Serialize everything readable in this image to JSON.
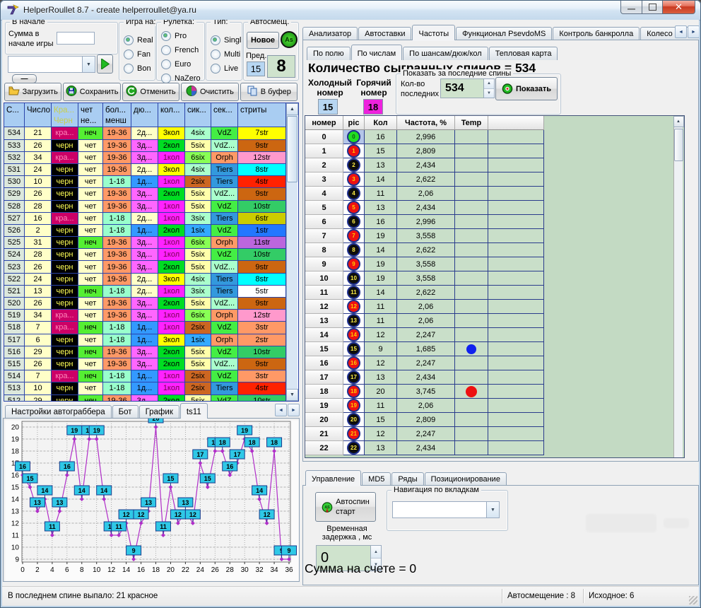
{
  "window": {
    "title": "HelperRoullet 8.7 - create helperroullet@ya.ru"
  },
  "controls": {
    "begin": {
      "title": "В начале",
      "label_line1": "Сумма в",
      "label_line2": "начале игры",
      "sum_value": ""
    },
    "combo_value": "",
    "collapse_label": "—",
    "game": {
      "title": "Игра на:",
      "options": [
        {
          "id": "real",
          "label": "Real",
          "checked": true
        },
        {
          "id": "fan",
          "label": "Fan",
          "checked": false
        },
        {
          "id": "bon",
          "label": "Bon",
          "checked": false
        }
      ]
    },
    "roulette": {
      "title": "Рулетка:",
      "options": [
        {
          "id": "pro",
          "label": "Pro",
          "checked": true
        },
        {
          "id": "french",
          "label": "French",
          "checked": false
        },
        {
          "id": "euro",
          "label": "Euro",
          "checked": false
        },
        {
          "id": "nazero",
          "label": "NaZero",
          "checked": false
        }
      ]
    },
    "type": {
      "title": "Тип:",
      "options": [
        {
          "id": "singl",
          "label": "Singl",
          "checked": true
        },
        {
          "id": "multi",
          "label": "Multi",
          "checked": false
        },
        {
          "id": "live",
          "label": "Live",
          "checked": false
        }
      ]
    },
    "autoshift": {
      "title": "Автосмещ.",
      "new_label": "Новое",
      "as_label": "As",
      "prev_label": "Пред.",
      "prev_value": "15",
      "current_value": "8"
    }
  },
  "toolbar": [
    {
      "id": "load",
      "label": "Загрузить"
    },
    {
      "id": "save",
      "label": "Сохранить"
    },
    {
      "id": "undo",
      "label": "Отменить"
    },
    {
      "id": "clear",
      "label": "Очистить"
    },
    {
      "id": "buffer",
      "label": "В буфер"
    }
  ],
  "spin_table": {
    "headers_row1": [
      "С...",
      "Число",
      "Кра...",
      "чет",
      "бол...",
      "дю...",
      "кол...",
      "сик...",
      "сек...",
      "стриты"
    ],
    "headers_row2": [
      "",
      "",
      "Черн",
      "не...",
      "менш",
      "",
      "",
      "",
      "",
      ""
    ],
    "color_map": {
      "кра...": [
        "#cc0066",
        "#ff88bb"
      ],
      "черн": [
        "#000000",
        "#ffff55"
      ],
      "чет": [
        "#ffffc8",
        "#000000"
      ],
      "неч": [
        "#55ee33",
        "#000000"
      ],
      "19-36": [
        "#ff9966",
        "#000000"
      ],
      "1-18": [
        "#99ffcc",
        "#000000"
      ],
      "1д...": [
        "#3399ff",
        "#000000"
      ],
      "2д...": [
        "#ffffc8",
        "#000000"
      ],
      "3д...": [
        "#ff66ff",
        "#000000"
      ],
      "1кол": [
        "#ff22ff",
        "#77004f"
      ],
      "2кол": [
        "#00dd22",
        "#000000"
      ],
      "3кол": [
        "#ffff00",
        "#000000"
      ],
      "1six": [
        "#33aaff",
        "#000000"
      ],
      "2six": [
        "#cc6622",
        "#000000"
      ],
      "3six": [
        "#aaffcc",
        "#000000"
      ],
      "4six": [
        "#aaffcc",
        "#000000"
      ],
      "5six": [
        "#ffffaa",
        "#000000"
      ],
      "6six": [
        "#88ff55",
        "#000000"
      ],
      "VdZ": [
        "#44ee44",
        "#000000"
      ],
      "VdZ...": [
        "#aaffcc",
        "#000000"
      ],
      "Orph": [
        "#ff9966",
        "#000000"
      ],
      "Tiers": [
        "#3399dd",
        "#000000"
      ],
      "1str": [
        "#2277ff",
        "#000000"
      ],
      "2str": [
        "#ff9966",
        "#000000"
      ],
      "3str": [
        "#ff9966",
        "#000000"
      ],
      "4str": [
        "#ff2200",
        "#000000"
      ],
      "5str": [
        "#ffffff",
        "#000000"
      ],
      "6str": [
        "#cccc00",
        "#000000"
      ],
      "7str": [
        "#ffff00",
        "#000000"
      ],
      "8str": [
        "#00ffff",
        "#000000"
      ],
      "9str": [
        "#cc6611",
        "#000000"
      ],
      "10str": [
        "#33cc66",
        "#000000"
      ],
      "11str": [
        "#bb66dd",
        "#000000"
      ],
      "12str": [
        "#ff99cc",
        "#000000"
      ]
    },
    "rows": [
      [
        "534",
        "21",
        "кра...",
        "неч",
        "19-36",
        "2д...",
        "3кол",
        "4six",
        "VdZ",
        "7str"
      ],
      [
        "533",
        "26",
        "черн",
        "чет",
        "19-36",
        "3д...",
        "2кол",
        "5six",
        "VdZ...",
        "9str"
      ],
      [
        "532",
        "34",
        "кра...",
        "чет",
        "19-36",
        "3д...",
        "1кол",
        "6six",
        "Orph",
        "12str"
      ],
      [
        "531",
        "24",
        "черн",
        "чет",
        "19-36",
        "2д...",
        "3кол",
        "4six",
        "Tiers",
        "8str"
      ],
      [
        "530",
        "10",
        "черн",
        "чет",
        "1-18",
        "1д...",
        "1кол",
        "2six",
        "Tiers",
        "4str"
      ],
      [
        "529",
        "26",
        "черн",
        "чет",
        "19-36",
        "3д...",
        "2кол",
        "5six",
        "VdZ...",
        "9str"
      ],
      [
        "528",
        "28",
        "черн",
        "чет",
        "19-36",
        "3д...",
        "1кол",
        "5six",
        "VdZ",
        "10str"
      ],
      [
        "527",
        "16",
        "кра...",
        "чет",
        "1-18",
        "2д...",
        "1кол",
        "3six",
        "Tiers",
        "6str"
      ],
      [
        "526",
        "2",
        "черн",
        "чет",
        "1-18",
        "1д...",
        "2кол",
        "1six",
        "VdZ",
        "1str"
      ],
      [
        "525",
        "31",
        "черн",
        "неч",
        "19-36",
        "3д...",
        "1кол",
        "6six",
        "Orph",
        "11str"
      ],
      [
        "524",
        "28",
        "черн",
        "чет",
        "19-36",
        "3д...",
        "1кол",
        "5six",
        "VdZ",
        "10str"
      ],
      [
        "523",
        "26",
        "черн",
        "чет",
        "19-36",
        "3д...",
        "2кол",
        "5six",
        "VdZ...",
        "9str"
      ],
      [
        "522",
        "24",
        "черн",
        "чет",
        "19-36",
        "2д...",
        "3кол",
        "4six",
        "Tiers",
        "8str"
      ],
      [
        "521",
        "13",
        "черн",
        "неч",
        "1-18",
        "2д...",
        "1кол",
        "3six",
        "Tiers",
        "5str"
      ],
      [
        "520",
        "26",
        "черн",
        "чет",
        "19-36",
        "3д...",
        "2кол",
        "5six",
        "VdZ...",
        "9str"
      ],
      [
        "519",
        "34",
        "кра...",
        "чет",
        "19-36",
        "3д...",
        "1кол",
        "6six",
        "Orph",
        "12str"
      ],
      [
        "518",
        "7",
        "кра...",
        "неч",
        "1-18",
        "1д...",
        "1кол",
        "2six",
        "VdZ",
        "3str"
      ],
      [
        "517",
        "6",
        "черн",
        "чет",
        "1-18",
        "1д...",
        "3кол",
        "1six",
        "Orph",
        "2str"
      ],
      [
        "516",
        "29",
        "черн",
        "неч",
        "19-36",
        "3д...",
        "2кол",
        "5six",
        "VdZ",
        "10str"
      ],
      [
        "515",
        "26",
        "черн",
        "чет",
        "19-36",
        "3д...",
        "2кол",
        "5six",
        "VdZ...",
        "9str"
      ],
      [
        "514",
        "7",
        "кра...",
        "неч",
        "1-18",
        "1д...",
        "1кол",
        "2six",
        "VdZ",
        "3str"
      ],
      [
        "513",
        "10",
        "черн",
        "чет",
        "1-18",
        "1д...",
        "1кол",
        "2six",
        "Tiers",
        "4str"
      ],
      [
        "512",
        "29",
        "черн",
        "неч",
        "19-36",
        "3д...",
        "2кол",
        "5six",
        "VdZ",
        "10str"
      ]
    ]
  },
  "chart_tabs": [
    {
      "id": "autograbber-settings",
      "label": "Настройки автограббера"
    },
    {
      "id": "bot",
      "label": "Бот"
    },
    {
      "id": "chart",
      "label": "График"
    },
    {
      "id": "ts11",
      "label": "ts11",
      "active": true
    }
  ],
  "chart_data": {
    "type": "line",
    "title": "",
    "xlabel": "",
    "ylabel": "",
    "x": [
      0,
      1,
      2,
      3,
      4,
      5,
      6,
      7,
      8,
      9,
      10,
      11,
      12,
      13,
      14,
      15,
      16,
      17,
      18,
      19,
      20,
      21,
      22,
      23,
      24,
      25,
      26,
      27,
      28,
      29,
      30,
      31,
      32,
      33,
      34,
      35,
      36
    ],
    "values": [
      16,
      15,
      13,
      14,
      11,
      13,
      16,
      19,
      14,
      19,
      19,
      14,
      11,
      11,
      12,
      9,
      12,
      13,
      20,
      11,
      15,
      12,
      13,
      12,
      17,
      15,
      18,
      18,
      16,
      17,
      19,
      18,
      14,
      12,
      18,
      9,
      9
    ],
    "ylim": [
      9,
      20
    ],
    "x_tick_step": 2,
    "grid": true,
    "legend": "none",
    "line_color": "#b02ec8",
    "label_box_color": "#2fc8e6",
    "label_box_border": "#1a3a8c"
  },
  "main_tabs": [
    {
      "id": "analyzer",
      "label": "Анализатор"
    },
    {
      "id": "autobets",
      "label": "Автоставки"
    },
    {
      "id": "frequencies",
      "label": "Частоты",
      "active": true
    },
    {
      "id": "psevdoms",
      "label": "Функционал PsevdoMS"
    },
    {
      "id": "bankroll",
      "label": "Контроль банкролла"
    },
    {
      "id": "wheel",
      "label": "Колесо рулет"
    }
  ],
  "freq_panel": {
    "sub_tabs": [
      {
        "id": "by-field",
        "label": "По полю"
      },
      {
        "id": "by-numbers",
        "label": "По числам",
        "active": true
      },
      {
        "id": "by-chances",
        "label": "По шансам/дюж/кол"
      },
      {
        "id": "heat-map",
        "label": "Тепловая карта"
      }
    ],
    "title": "Количество сыгранных спинов = 534",
    "cold_label1": "Холодный",
    "cold_label2": "номер",
    "cold_value": "15",
    "hot_label1": "Горячий",
    "hot_label2": "номер",
    "hot_value": "18",
    "show_group_title": "Показать за последние спины",
    "count_label1": "Кол-во",
    "count_label2": "последних",
    "count_value": "534",
    "show_button": "Показать",
    "table_headers": [
      "номер",
      "pic",
      "Кол",
      "Частота, %",
      "Temp",
      ""
    ],
    "rows": [
      {
        "n": "0",
        "color": "green",
        "count": "16",
        "freq": "2,996",
        "temp": ""
      },
      {
        "n": "1",
        "color": "red",
        "count": "15",
        "freq": "2,809",
        "temp": ""
      },
      {
        "n": "2",
        "color": "black",
        "count": "13",
        "freq": "2,434",
        "temp": ""
      },
      {
        "n": "3",
        "color": "red",
        "count": "14",
        "freq": "2,622",
        "temp": ""
      },
      {
        "n": "4",
        "color": "black",
        "count": "11",
        "freq": "2,06",
        "temp": ""
      },
      {
        "n": "5",
        "color": "red",
        "count": "13",
        "freq": "2,434",
        "temp": ""
      },
      {
        "n": "6",
        "color": "black",
        "count": "16",
        "freq": "2,996",
        "temp": ""
      },
      {
        "n": "7",
        "color": "red",
        "count": "19",
        "freq": "3,558",
        "temp": ""
      },
      {
        "n": "8",
        "color": "black",
        "count": "14",
        "freq": "2,622",
        "temp": ""
      },
      {
        "n": "9",
        "color": "red",
        "count": "19",
        "freq": "3,558",
        "temp": ""
      },
      {
        "n": "10",
        "color": "black",
        "count": "19",
        "freq": "3,558",
        "temp": ""
      },
      {
        "n": "11",
        "color": "black",
        "count": "14",
        "freq": "2,622",
        "temp": ""
      },
      {
        "n": "12",
        "color": "red",
        "count": "11",
        "freq": "2,06",
        "temp": ""
      },
      {
        "n": "13",
        "color": "black",
        "count": "11",
        "freq": "2,06",
        "temp": ""
      },
      {
        "n": "14",
        "color": "red",
        "count": "12",
        "freq": "2,247",
        "temp": ""
      },
      {
        "n": "15",
        "color": "black",
        "count": "9",
        "freq": "1,685",
        "temp": "blue"
      },
      {
        "n": "16",
        "color": "red",
        "count": "12",
        "freq": "2,247",
        "temp": ""
      },
      {
        "n": "17",
        "color": "black",
        "count": "13",
        "freq": "2,434",
        "temp": ""
      },
      {
        "n": "18",
        "color": "red",
        "count": "20",
        "freq": "3,745",
        "temp": "red"
      },
      {
        "n": "19",
        "color": "red",
        "count": "11",
        "freq": "2,06",
        "temp": ""
      },
      {
        "n": "20",
        "color": "black",
        "count": "15",
        "freq": "2,809",
        "temp": ""
      },
      {
        "n": "21",
        "color": "red",
        "count": "12",
        "freq": "2,247",
        "temp": ""
      },
      {
        "n": "22",
        "color": "black",
        "count": "13",
        "freq": "2,434",
        "temp": ""
      }
    ]
  },
  "control_panel": {
    "tabs": [
      {
        "id": "control",
        "label": "Управление",
        "active": true
      },
      {
        "id": "md5",
        "label": "MD5"
      },
      {
        "id": "rows",
        "label": "Ряды"
      },
      {
        "id": "positioning",
        "label": "Позиционирование"
      }
    ],
    "autospin_line1": "Автоспин",
    "autospin_line2": "старт",
    "nav_group_title": "Навигация по вкладкам",
    "nav_value": "",
    "delay_label1": "Временная",
    "delay_label2": "задержка , мс",
    "delay_value": "0",
    "sum_text": "Сумма на счете = 0"
  },
  "status_bar": {
    "left": "В последнем спине выпало: 21 красное",
    "autoshift": "Автосмещение : 8",
    "initial": "Исходное: 6"
  }
}
